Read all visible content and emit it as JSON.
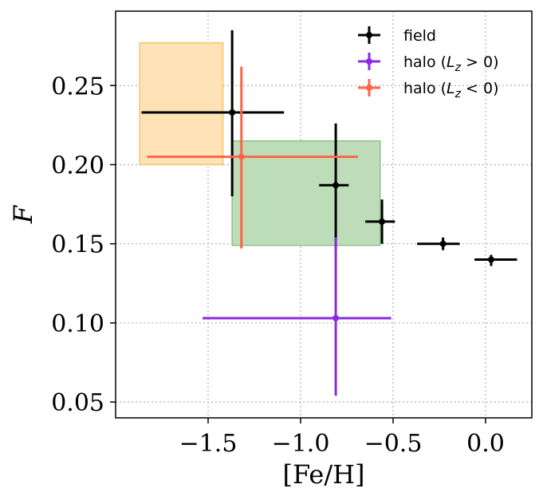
{
  "chart_data": {
    "type": "scatter",
    "title": "",
    "xlabel": "[Fe/H]",
    "ylabel": "F",
    "xlim": [
      -2.0,
      0.25
    ],
    "ylim": [
      0.04,
      0.297
    ],
    "x_ticks": [
      -1.5,
      -1.0,
      -0.5,
      0.0
    ],
    "x_tick_labels": [
      "−1.5",
      "−1.0",
      "−0.5",
      "0.0"
    ],
    "y_ticks": [
      0.05,
      0.1,
      0.15,
      0.2,
      0.25
    ],
    "y_tick_labels": [
      "0.05",
      "0.10",
      "0.15",
      "0.20",
      "0.25"
    ],
    "grid": true,
    "legend_position": "top-right",
    "regions": [
      {
        "name": "orange-region",
        "x": [
          -1.87,
          -1.42
        ],
        "y": [
          0.2,
          0.277
        ],
        "color": "#FFE2B5",
        "edge": "#F7C46A"
      },
      {
        "name": "green-region",
        "x": [
          -1.37,
          -0.57
        ],
        "y": [
          0.149,
          0.215
        ],
        "color": "#BDDDB9",
        "edge": "#8CC08A"
      }
    ],
    "series": [
      {
        "name": "field",
        "color": "#000000",
        "points": [
          {
            "x": -1.37,
            "y": 0.233,
            "xerr": [
              0.49,
              0.28
            ],
            "yerr": [
              0.053,
              0.052
            ]
          },
          {
            "x": -0.81,
            "y": 0.187,
            "xerr": [
              0.09,
              0.07
            ],
            "yerr": [
              0.041,
              0.039
            ]
          },
          {
            "x": -0.56,
            "y": 0.164,
            "xerr": [
              0.09,
              0.07
            ],
            "yerr": [
              0.014,
              0.014
            ]
          },
          {
            "x": -0.23,
            "y": 0.15,
            "xerr": [
              0.14,
              0.09
            ],
            "yerr": [
              0.004,
              0.004
            ]
          },
          {
            "x": 0.03,
            "y": 0.14,
            "xerr": [
              0.09,
              0.14
            ],
            "yerr": [
              0.004,
              0.003
            ]
          }
        ]
      },
      {
        "name": "halo (Lz > 0)",
        "color": "#8A2BE2",
        "points": [
          {
            "x": -0.81,
            "y": 0.103,
            "xerr": [
              0.72,
              0.3
            ],
            "yerr": [
              0.049,
              0.051
            ]
          }
        ]
      },
      {
        "name": "halo (Lz < 0)",
        "color": "#FF6347",
        "points": [
          {
            "x": -1.32,
            "y": 0.205,
            "xerr": [
              0.51,
              0.63
            ],
            "yerr": [
              0.058,
              0.057
            ]
          }
        ]
      }
    ],
    "legend": [
      {
        "label": "field",
        "color": "#000000",
        "math": false
      },
      {
        "label_prefix": "halo (",
        "label_math_var": "L",
        "label_math_sub": "z",
        "label_suffix": " > 0)",
        "color": "#8A2BE2",
        "math": true
      },
      {
        "label_prefix": "halo (",
        "label_math_var": "L",
        "label_math_sub": "z",
        "label_suffix": " < 0)",
        "color": "#FF6347",
        "math": true
      }
    ]
  }
}
